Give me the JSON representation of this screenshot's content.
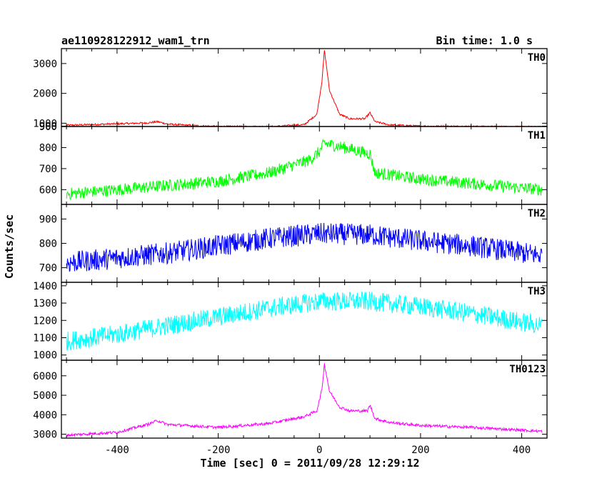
{
  "header": {
    "title": "ae110928122912_wam1_trn",
    "bin_time": "Bin time: 1.0 s"
  },
  "chart_data": {
    "type": "line",
    "xlabel": "Time [sec] 0 = 2011/09/28 12:29:12",
    "ylabel": "Counts/sec",
    "xlim": [
      -510,
      450
    ],
    "xticks": [
      -400,
      -200,
      0,
      200,
      400
    ],
    "panels": [
      {
        "name": "TH0",
        "color": "#ff0000",
        "ylim": [
          890,
          3500
        ],
        "yticks": [
          900,
          1000,
          2000,
          3000
        ],
        "x": [
          -500,
          -400,
          -340,
          -320,
          -300,
          -250,
          -200,
          -100,
          -30,
          -5,
          5,
          10,
          20,
          40,
          60,
          90,
          100,
          110,
          140,
          200,
          300,
          440
        ],
        "y": [
          930,
          980,
          1010,
          1050,
          970,
          920,
          890,
          880,
          950,
          1300,
          2400,
          3450,
          2100,
          1300,
          1150,
          1150,
          1350,
          1050,
          940,
          900,
          890,
          870
        ],
        "noise": 20
      },
      {
        "name": "TH1",
        "color": "#00ff00",
        "ylim": [
          530,
          900
        ],
        "yticks": [
          600,
          700,
          800,
          900
        ],
        "x": [
          -500,
          -400,
          -300,
          -200,
          -100,
          -20,
          0,
          10,
          50,
          100,
          110,
          200,
          300,
          440
        ],
        "y": [
          580,
          600,
          620,
          640,
          680,
          740,
          780,
          820,
          800,
          770,
          680,
          650,
          630,
          600
        ],
        "noise": 18
      },
      {
        "name": "TH2",
        "color": "#0000ff",
        "ylim": [
          640,
          960
        ],
        "yticks": [
          700,
          800,
          900
        ],
        "x": [
          -500,
          -400,
          -300,
          -200,
          -100,
          0,
          100,
          200,
          300,
          440
        ],
        "y": [
          720,
          740,
          760,
          790,
          820,
          840,
          835,
          810,
          790,
          750
        ],
        "noise": 28
      },
      {
        "name": "TH3",
        "color": "#00ffff",
        "ylim": [
          970,
          1420
        ],
        "yticks": [
          1000,
          1100,
          1200,
          1300,
          1400
        ],
        "x": [
          -500,
          -400,
          -300,
          -200,
          -100,
          0,
          100,
          200,
          300,
          440
        ],
        "y": [
          1080,
          1120,
          1170,
          1220,
          1270,
          1310,
          1310,
          1280,
          1240,
          1170
        ],
        "noise": 35
      },
      {
        "name": "TH0123",
        "color": "#ff00ff",
        "ylim": [
          2800,
          6800
        ],
        "yticks": [
          3000,
          4000,
          5000,
          6000
        ],
        "x": [
          -500,
          -400,
          -340,
          -320,
          -300,
          -200,
          -100,
          -30,
          -5,
          5,
          10,
          20,
          40,
          60,
          95,
          100,
          110,
          140,
          200,
          300,
          440
        ],
        "y": [
          2950,
          3100,
          3500,
          3700,
          3500,
          3350,
          3550,
          3900,
          4200,
          5300,
          6600,
          5200,
          4400,
          4200,
          4200,
          4500,
          3800,
          3600,
          3450,
          3350,
          3150
        ],
        "noise": 45
      }
    ]
  }
}
